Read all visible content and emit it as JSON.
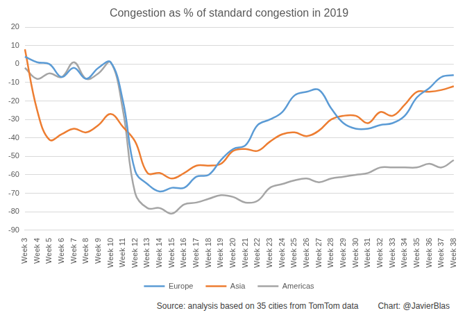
{
  "chart_data": {
    "type": "line",
    "title": "Congestion as % of standard congestion in 2019",
    "annotations": [
      "Source: analysis based on 35 cities from TomTom data",
      "Chart: @JavierBlas"
    ],
    "categories": [
      "Week 3",
      "Week 4",
      "Week 5",
      "Week 6",
      "Week 7",
      "Week 8",
      "Week 9",
      "Week 10",
      "Week 11",
      "Week 12",
      "Week 13",
      "Week 14",
      "Week 15",
      "Week 16",
      "Week 17",
      "Week 18",
      "Week 19",
      "Week 20",
      "Week 21",
      "Week 22",
      "Week 23",
      "Week 24",
      "Week 25",
      "Week 26",
      "Week 27",
      "Week 28",
      "Week 29",
      "Week 30",
      "Week 31",
      "Week 32",
      "Week 33",
      "Week 34",
      "Week 35",
      "Week 36",
      "Week 37",
      "Week 38"
    ],
    "series": [
      {
        "name": "Europe",
        "color": "#5b9bd5",
        "values": [
          4,
          1,
          0,
          -7,
          -2,
          -8,
          -2,
          1,
          -20,
          -58,
          -65,
          -69,
          -67,
          -67,
          -61,
          -60,
          -52,
          -46,
          -44,
          -33,
          -30,
          -26,
          -17,
          -15,
          -14,
          -24,
          -32,
          -35,
          -35,
          -33,
          -32,
          -28,
          -18,
          -13,
          -7,
          -6
        ]
      },
      {
        "name": "Asia",
        "color": "#ed7d31",
        "values": [
          8,
          -25,
          -41,
          -38,
          -35,
          -37,
          -33,
          -27,
          -34,
          -42,
          -59,
          -59,
          -62,
          -59,
          -55,
          -55,
          -54,
          -47,
          -46,
          -47,
          -42,
          -38,
          -37,
          -39,
          -36,
          -30,
          -28,
          -28,
          -32,
          -26,
          -28,
          -22,
          -15,
          -15,
          -14,
          -12
        ]
      },
      {
        "name": "Americas",
        "color": "#a5a5a5",
        "values": [
          -2,
          -8,
          -5,
          -7,
          1,
          -8,
          -5,
          1,
          -25,
          -70,
          -78,
          -78,
          -81,
          -76,
          -75,
          -73,
          -71,
          -72,
          -75,
          -74,
          -67,
          -65,
          -63,
          -62,
          -64,
          -62,
          -61,
          -60,
          -59,
          -56,
          -56,
          -56,
          -56,
          -54,
          -56,
          -52
        ]
      }
    ],
    "ylim": [
      -90,
      20
    ],
    "yticks": [
      -90,
      -80,
      -70,
      -60,
      -50,
      -40,
      -30,
      -20,
      -10,
      0,
      10,
      20
    ],
    "grid": true,
    "legend": "bottom"
  }
}
